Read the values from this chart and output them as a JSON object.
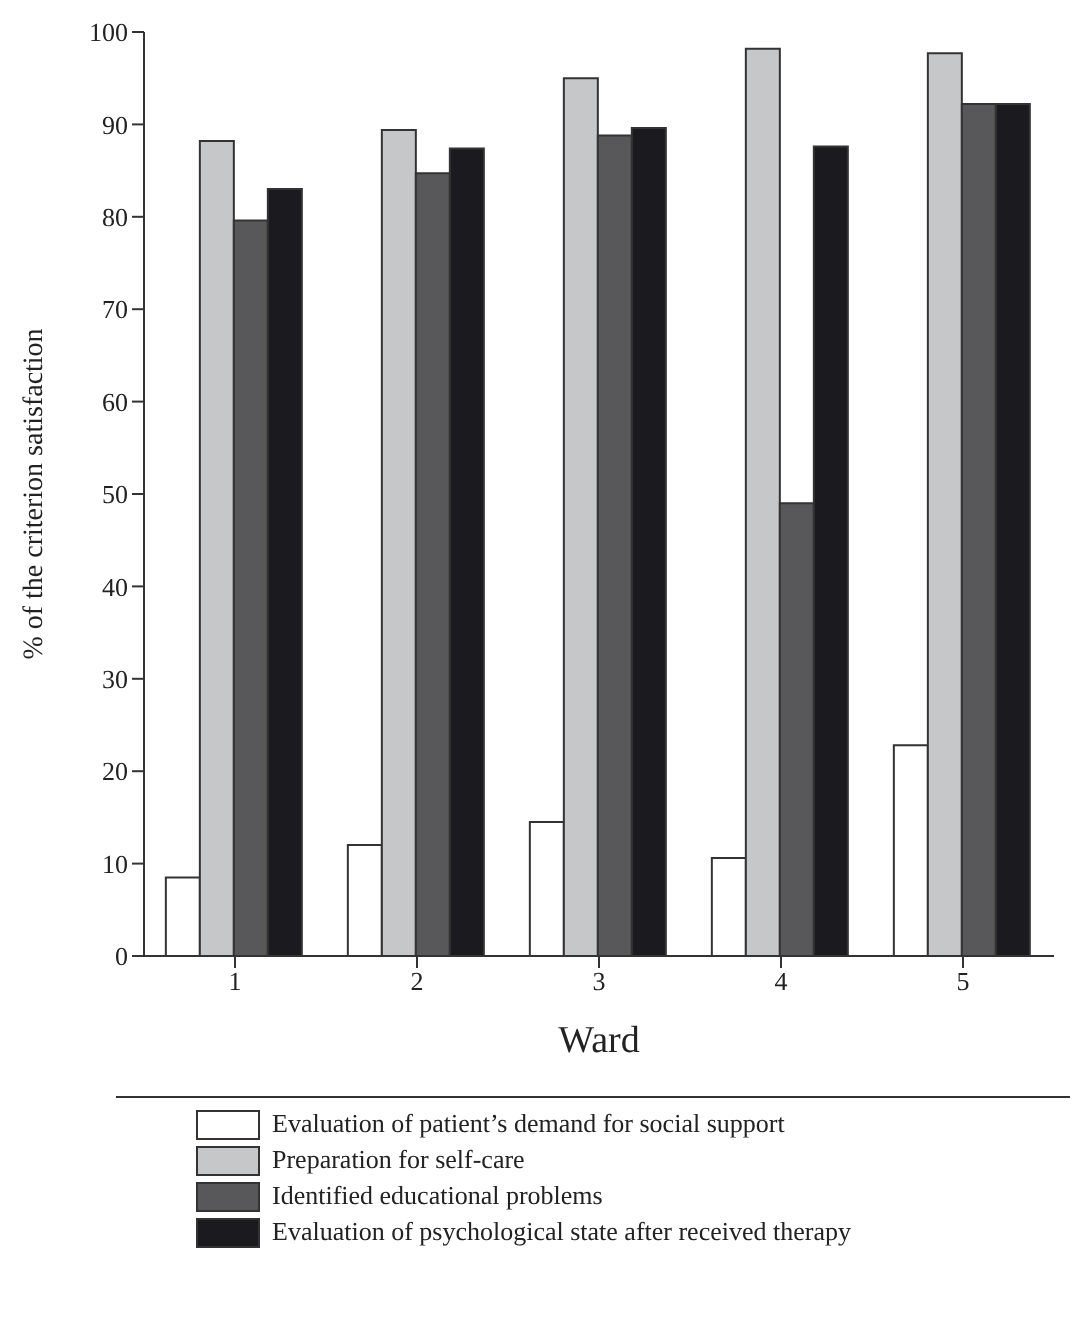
{
  "chart_data": {
    "type": "bar",
    "xlabel": "Ward",
    "ylabel": "% of the criterion satisfaction",
    "categories": [
      "1",
      "2",
      "3",
      "4",
      "5"
    ],
    "series": [
      {
        "name": "Evaluation of patient’s demand for social support",
        "color": "#ffffff",
        "values": [
          8.5,
          12,
          14.5,
          10.6,
          22.8
        ]
      },
      {
        "name": "Preparation for self-care",
        "color": "#c6c7c9",
        "values": [
          88.2,
          89.4,
          95,
          98.2,
          97.7
        ]
      },
      {
        "name": "Identified educational problems",
        "color": "#58585a",
        "values": [
          79.6,
          84.7,
          88.8,
          49,
          92.2
        ]
      },
      {
        "name": "Evaluation of psychological state after received therapy",
        "color": "#1b1a1e",
        "values": [
          83,
          87.4,
          89.6,
          87.6,
          92.2
        ]
      }
    ],
    "ylim": [
      0,
      100
    ],
    "yticks": [
      0,
      10,
      20,
      30,
      40,
      50,
      60,
      70,
      80,
      90,
      100
    ],
    "grid": false,
    "legend": "bottom"
  }
}
